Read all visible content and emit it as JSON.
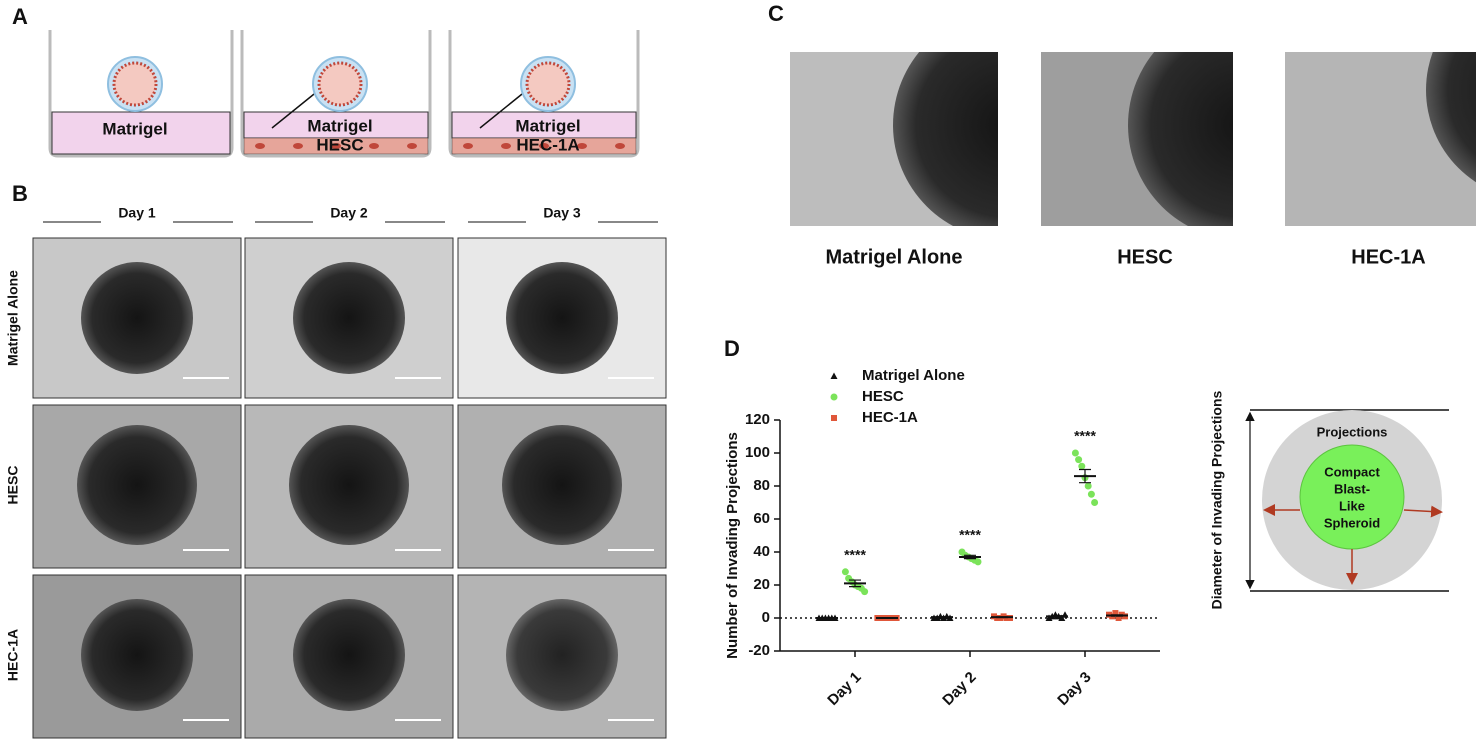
{
  "panels": {
    "a": {
      "label": "A",
      "wells": [
        [
          "Matrigel"
        ],
        [
          "Matrigel",
          "HESC"
        ],
        [
          "Matrigel",
          "HEC-1A"
        ]
      ]
    },
    "b": {
      "label": "B",
      "columns": [
        "Day 1",
        "Day 2",
        "Day 3"
      ],
      "rows": [
        "Matrigel Alone",
        "HESC",
        "HEC-1A"
      ]
    },
    "c": {
      "label": "C",
      "captions": [
        "Matrigel Alone",
        "HESC",
        "HEC-1A"
      ]
    },
    "d": {
      "label": "D"
    },
    "diagram": {
      "outer": "Projections",
      "inner": [
        "Compact",
        "Blast-",
        "Like",
        "Spheroid"
      ],
      "axis": "Diameter of Invading  Projections"
    }
  },
  "chart_data": {
    "type": "scatter",
    "ylabel": "Number of Invading Projections",
    "categories": [
      "Day 1",
      "Day 2",
      "Day 3"
    ],
    "ylim": [
      -20,
      120
    ],
    "yticks": [
      -20,
      0,
      20,
      40,
      60,
      80,
      100,
      120
    ],
    "annotations": [
      "****",
      "****",
      "****"
    ],
    "series": [
      {
        "name": "Matrigel Alone",
        "color": "#111111",
        "marker": "triangle",
        "values": [
          [
            0,
            0,
            0,
            0,
            0,
            0
          ],
          [
            0,
            0,
            1,
            0,
            1,
            0
          ],
          [
            0,
            1,
            2,
            1,
            0,
            2
          ]
        ],
        "means": [
          0,
          0.5,
          1
        ],
        "errors": [
          0,
          0.2,
          0.4
        ]
      },
      {
        "name": "HESC",
        "color": "#7be35a",
        "marker": "circle",
        "values": [
          [
            28,
            24,
            22,
            20,
            19,
            18,
            16
          ],
          [
            40,
            38,
            37,
            36,
            35,
            34
          ],
          [
            100,
            96,
            92,
            85,
            80,
            75,
            70
          ]
        ],
        "means": [
          21,
          37,
          86
        ],
        "errors": [
          2,
          1,
          4
        ]
      },
      {
        "name": "HEC-1A",
        "color": "#e0573a",
        "marker": "square",
        "values": [
          [
            0,
            0,
            0,
            0,
            0,
            0,
            0
          ],
          [
            1,
            0,
            0,
            1,
            0,
            0
          ],
          [
            2,
            1,
            3,
            0,
            2,
            1
          ]
        ],
        "means": [
          0,
          0.5,
          1.5
        ],
        "errors": [
          0,
          0.2,
          0.4
        ]
      }
    ]
  }
}
